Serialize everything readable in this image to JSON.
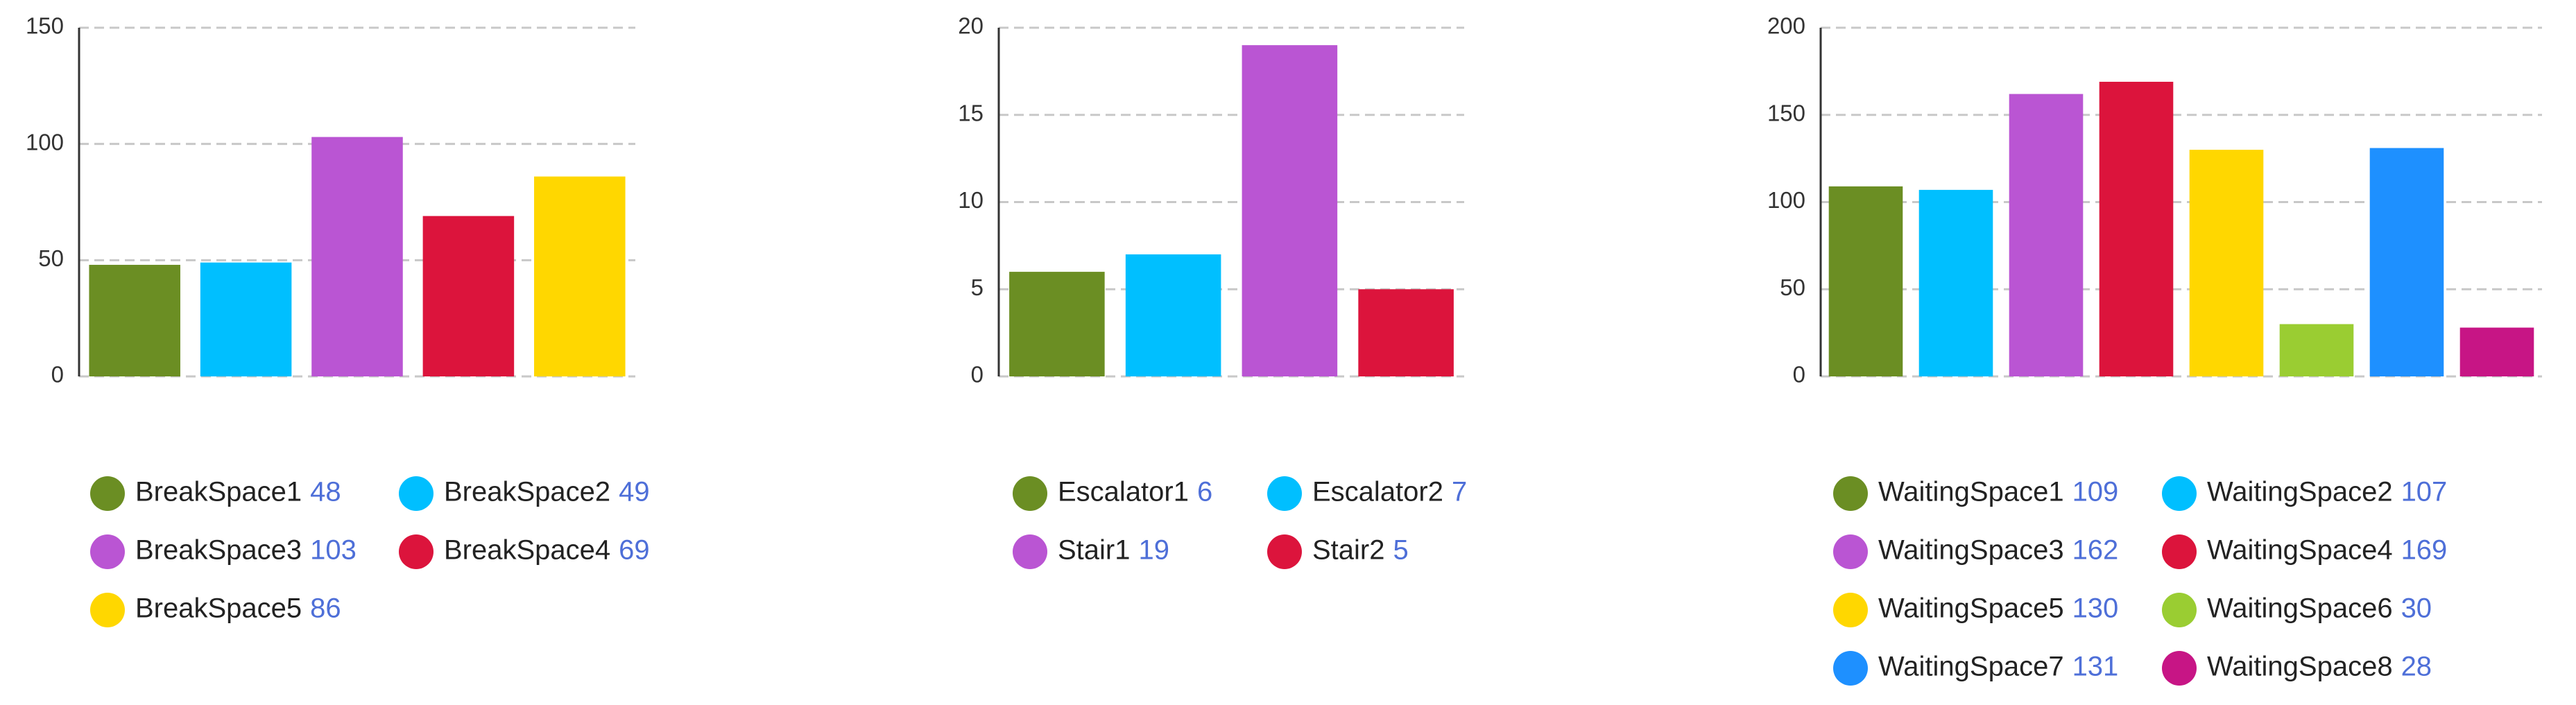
{
  "chart_data": [
    {
      "type": "bar",
      "categories": [
        "BreakSpace1",
        "BreakSpace2",
        "BreakSpace3",
        "BreakSpace4",
        "BreakSpace5"
      ],
      "values": [
        48,
        49,
        103,
        69,
        86
      ],
      "colors": [
        "#6b8e23",
        "#00bfff",
        "#ba55d3",
        "#dc143c",
        "#ffd700"
      ],
      "ylim": [
        0,
        150
      ],
      "yticks": [
        0,
        50,
        100,
        150
      ],
      "grid": true
    },
    {
      "type": "bar",
      "categories": [
        "Escalator1",
        "Escalator2",
        "Stair1",
        "Stair2"
      ],
      "values": [
        6,
        7,
        19,
        5
      ],
      "colors": [
        "#6b8e23",
        "#00bfff",
        "#ba55d3",
        "#dc143c"
      ],
      "ylim": [
        0,
        20
      ],
      "yticks": [
        0,
        5,
        10,
        15,
        20
      ],
      "grid": true
    },
    {
      "type": "bar",
      "categories": [
        "WaitingSpace1",
        "WaitingSpace2",
        "WaitingSpace3",
        "WaitingSpace4",
        "WaitingSpace5",
        "WaitingSpace6",
        "WaitingSpace7",
        "WaitingSpace8"
      ],
      "values": [
        109,
        107,
        162,
        169,
        130,
        30,
        131,
        28
      ],
      "colors": [
        "#6b8e23",
        "#00bfff",
        "#ba55d3",
        "#dc143c",
        "#ffd700",
        "#9acd32",
        "#1e90ff",
        "#c71585"
      ],
      "ylim": [
        0,
        200
      ],
      "yticks": [
        0,
        50,
        100,
        150,
        200
      ],
      "grid": true
    }
  ]
}
